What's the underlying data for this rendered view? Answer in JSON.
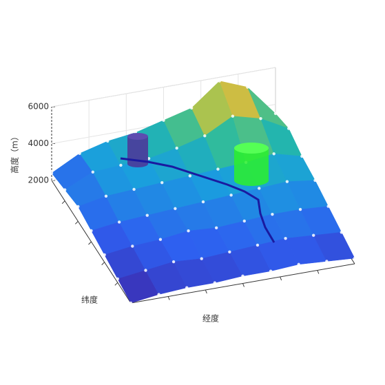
{
  "chart_data": {
    "type": "surface3d",
    "zlabel": "高度（m）",
    "ylabel": "纬度",
    "xlabel": "经度",
    "zlim": [
      2000,
      6000
    ],
    "zticks": [
      2000,
      4000,
      6000
    ],
    "colormap": [
      "#3e26a8",
      "#2e5ff0",
      "#1a9ede",
      "#25b9a6",
      "#8bc85a",
      "#e6b93a",
      "#f9e61d"
    ],
    "heights": [
      [
        2400,
        3200,
        3600,
        3800,
        4200,
        4600,
        5800,
        5200,
        3500
      ],
      [
        2600,
        3300,
        3400,
        3500,
        3800,
        4200,
        5000,
        4600,
        3800
      ],
      [
        2800,
        3100,
        3200,
        3300,
        3400,
        3500,
        3600,
        3800,
        3400
      ],
      [
        2600,
        2800,
        2900,
        3000,
        3100,
        3200,
        3300,
        3400,
        3200
      ],
      [
        2400,
        2600,
        2700,
        2900,
        2800,
        2900,
        3000,
        3000,
        2900
      ],
      [
        2200,
        2400,
        2600,
        2500,
        2600,
        2700,
        2800,
        2700,
        2600
      ],
      [
        2000,
        2200,
        2300,
        2300,
        2400,
        2400,
        2500,
        2400,
        2300
      ]
    ]
  }
}
